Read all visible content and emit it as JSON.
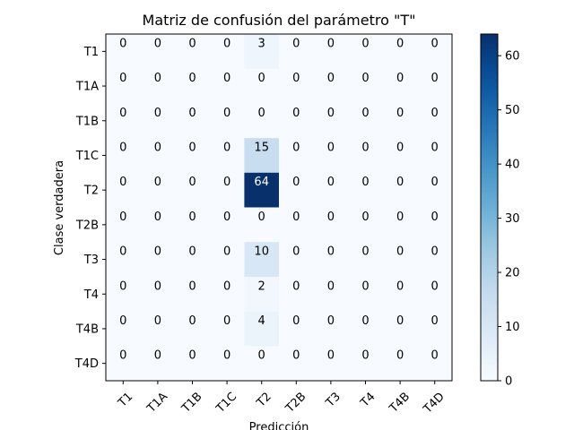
{
  "chart_data": {
    "type": "heatmap",
    "title": "Matriz de confusión del parámetro \"T\"",
    "xlabel": "Predicción",
    "ylabel": "Clase verdadera",
    "x_categories": [
      "T1",
      "T1A",
      "T1B",
      "T1C",
      "T2",
      "T2B",
      "T3",
      "T4",
      "T4B",
      "T4D"
    ],
    "y_categories": [
      "T1",
      "T1A",
      "T1B",
      "T1C",
      "T2",
      "T2B",
      "T3",
      "T4",
      "T4B",
      "T4D"
    ],
    "matrix": [
      [
        0,
        0,
        0,
        0,
        3,
        0,
        0,
        0,
        0,
        0
      ],
      [
        0,
        0,
        0,
        0,
        0,
        0,
        0,
        0,
        0,
        0
      ],
      [
        0,
        0,
        0,
        0,
        0,
        0,
        0,
        0,
        0,
        0
      ],
      [
        0,
        0,
        0,
        0,
        15,
        0,
        0,
        0,
        0,
        0
      ],
      [
        0,
        0,
        0,
        0,
        64,
        0,
        0,
        0,
        0,
        0
      ],
      [
        0,
        0,
        0,
        0,
        0,
        0,
        0,
        0,
        0,
        0
      ],
      [
        0,
        0,
        0,
        0,
        10,
        0,
        0,
        0,
        0,
        0
      ],
      [
        0,
        0,
        0,
        0,
        2,
        0,
        0,
        0,
        0,
        0
      ],
      [
        0,
        0,
        0,
        0,
        4,
        0,
        0,
        0,
        0,
        0
      ],
      [
        0,
        0,
        0,
        0,
        0,
        0,
        0,
        0,
        0,
        0
      ]
    ],
    "colormap": "Blues",
    "vmin": 0,
    "vmax": 64,
    "colorbar_ticks": [
      0,
      10,
      20,
      30,
      40,
      50,
      60
    ],
    "x_tick_rotation_deg": 45,
    "grid": false
  }
}
